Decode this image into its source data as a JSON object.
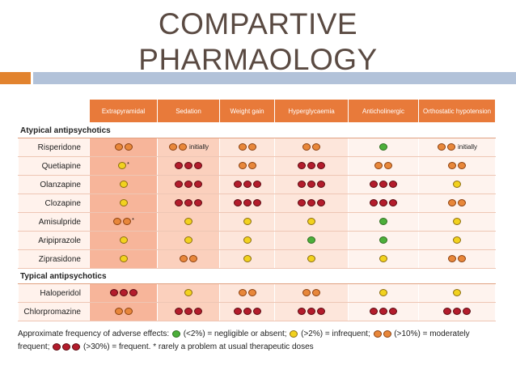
{
  "title_line1": "COMPARTIVE",
  "title_line2": "PHARMAOLOGY",
  "table": {
    "columns": [
      "Extrapyramidal",
      "Sedation",
      "Weight gain",
      "Hyperglycaemia",
      "Anticholinergic",
      "Orthostatic hypotension"
    ],
    "sections": [
      {
        "label": "Atypical antipsychotics",
        "rows": [
          {
            "drug": "Risperidone",
            "cells": [
              {
                "dots": [
                  "orange",
                  "orange"
                ]
              },
              {
                "dots": [
                  "orange",
                  "orange"
                ],
                "note": "initially"
              },
              {
                "dots": [
                  "orange",
                  "orange"
                ]
              },
              {
                "dots": [
                  "orange",
                  "orange"
                ]
              },
              {
                "dots": [
                  "green"
                ]
              },
              {
                "dots": [
                  "orange",
                  "orange"
                ],
                "note": "initially"
              }
            ]
          },
          {
            "drug": "Quetiapine",
            "cells": [
              {
                "dots": [
                  "yellow"
                ],
                "star": "*"
              },
              {
                "dots": [
                  "red",
                  "red",
                  "red"
                ]
              },
              {
                "dots": [
                  "orange",
                  "orange"
                ]
              },
              {
                "dots": [
                  "red",
                  "red",
                  "red"
                ]
              },
              {
                "dots": [
                  "orange",
                  "orange"
                ]
              },
              {
                "dots": [
                  "orange",
                  "orange"
                ]
              }
            ]
          },
          {
            "drug": "Olanzapine",
            "cells": [
              {
                "dots": [
                  "yellow"
                ]
              },
              {
                "dots": [
                  "red",
                  "red",
                  "red"
                ]
              },
              {
                "dots": [
                  "red",
                  "red",
                  "red"
                ]
              },
              {
                "dots": [
                  "red",
                  "red",
                  "red"
                ]
              },
              {
                "dots": [
                  "red",
                  "red",
                  "red"
                ]
              },
              {
                "dots": [
                  "yellow"
                ]
              }
            ]
          },
          {
            "drug": "Clozapine",
            "cells": [
              {
                "dots": [
                  "yellow"
                ]
              },
              {
                "dots": [
                  "red",
                  "red",
                  "red"
                ]
              },
              {
                "dots": [
                  "red",
                  "red",
                  "red"
                ]
              },
              {
                "dots": [
                  "red",
                  "red",
                  "red"
                ]
              },
              {
                "dots": [
                  "red",
                  "red",
                  "red"
                ]
              },
              {
                "dots": [
                  "orange",
                  "orange"
                ]
              }
            ]
          },
          {
            "drug": "Amisulpride",
            "cells": [
              {
                "dots": [
                  "orange",
                  "orange"
                ],
                "star": "*"
              },
              {
                "dots": [
                  "yellow"
                ]
              },
              {
                "dots": [
                  "yellow"
                ]
              },
              {
                "dots": [
                  "yellow"
                ]
              },
              {
                "dots": [
                  "green"
                ]
              },
              {
                "dots": [
                  "yellow"
                ]
              }
            ]
          },
          {
            "drug": "Aripiprazole",
            "cells": [
              {
                "dots": [
                  "yellow"
                ]
              },
              {
                "dots": [
                  "yellow"
                ]
              },
              {
                "dots": [
                  "yellow"
                ]
              },
              {
                "dots": [
                  "green"
                ]
              },
              {
                "dots": [
                  "green"
                ]
              },
              {
                "dots": [
                  "yellow"
                ]
              }
            ]
          },
          {
            "drug": "Ziprasidone",
            "cells": [
              {
                "dots": [
                  "yellow"
                ]
              },
              {
                "dots": [
                  "orange",
                  "orange"
                ]
              },
              {
                "dots": [
                  "yellow"
                ]
              },
              {
                "dots": [
                  "yellow"
                ]
              },
              {
                "dots": [
                  "yellow"
                ]
              },
              {
                "dots": [
                  "orange",
                  "orange"
                ]
              }
            ]
          }
        ]
      },
      {
        "label": "Typical antipsychotics",
        "rows": [
          {
            "drug": "Haloperidol",
            "cells": [
              {
                "dots": [
                  "red",
                  "red",
                  "red"
                ]
              },
              {
                "dots": [
                  "yellow"
                ]
              },
              {
                "dots": [
                  "orange",
                  "orange"
                ]
              },
              {
                "dots": [
                  "orange",
                  "orange"
                ]
              },
              {
                "dots": [
                  "yellow"
                ]
              },
              {
                "dots": [
                  "yellow"
                ]
              }
            ]
          },
          {
            "drug": "Chlorpromazine",
            "cells": [
              {
                "dots": [
                  "orange",
                  "orange"
                ]
              },
              {
                "dots": [
                  "red",
                  "red",
                  "red"
                ]
              },
              {
                "dots": [
                  "red",
                  "red",
                  "red"
                ]
              },
              {
                "dots": [
                  "red",
                  "red",
                  "red"
                ]
              },
              {
                "dots": [
                  "red",
                  "red",
                  "red"
                ]
              },
              {
                "dots": [
                  "red",
                  "red",
                  "red"
                ]
              }
            ]
          }
        ]
      }
    ]
  },
  "legend": {
    "intro": "Approximate frequency of adverse effects: ",
    "items": [
      {
        "dots": [
          "green"
        ],
        "text": " (<2%) = negligible or absent; "
      },
      {
        "dots": [
          "yellow"
        ],
        "text": " (>2%) = infrequent; "
      },
      {
        "dots": [
          "orange",
          "orange"
        ],
        "text": " (>10%) = moderately frequent; "
      },
      {
        "dots": [
          "red",
          "red",
          "red"
        ],
        "text": " (>30%) = frequent. * rarely a problem at usual therapeutic doses"
      }
    ]
  },
  "colors": {
    "header": "#e87a3a",
    "accent_bar": "#e2832e",
    "rule_bar": "#b2c2d9",
    "green": "#4caf3a",
    "yellow": "#f2d21e",
    "orange": "#e8873a",
    "red": "#b31c2c"
  }
}
